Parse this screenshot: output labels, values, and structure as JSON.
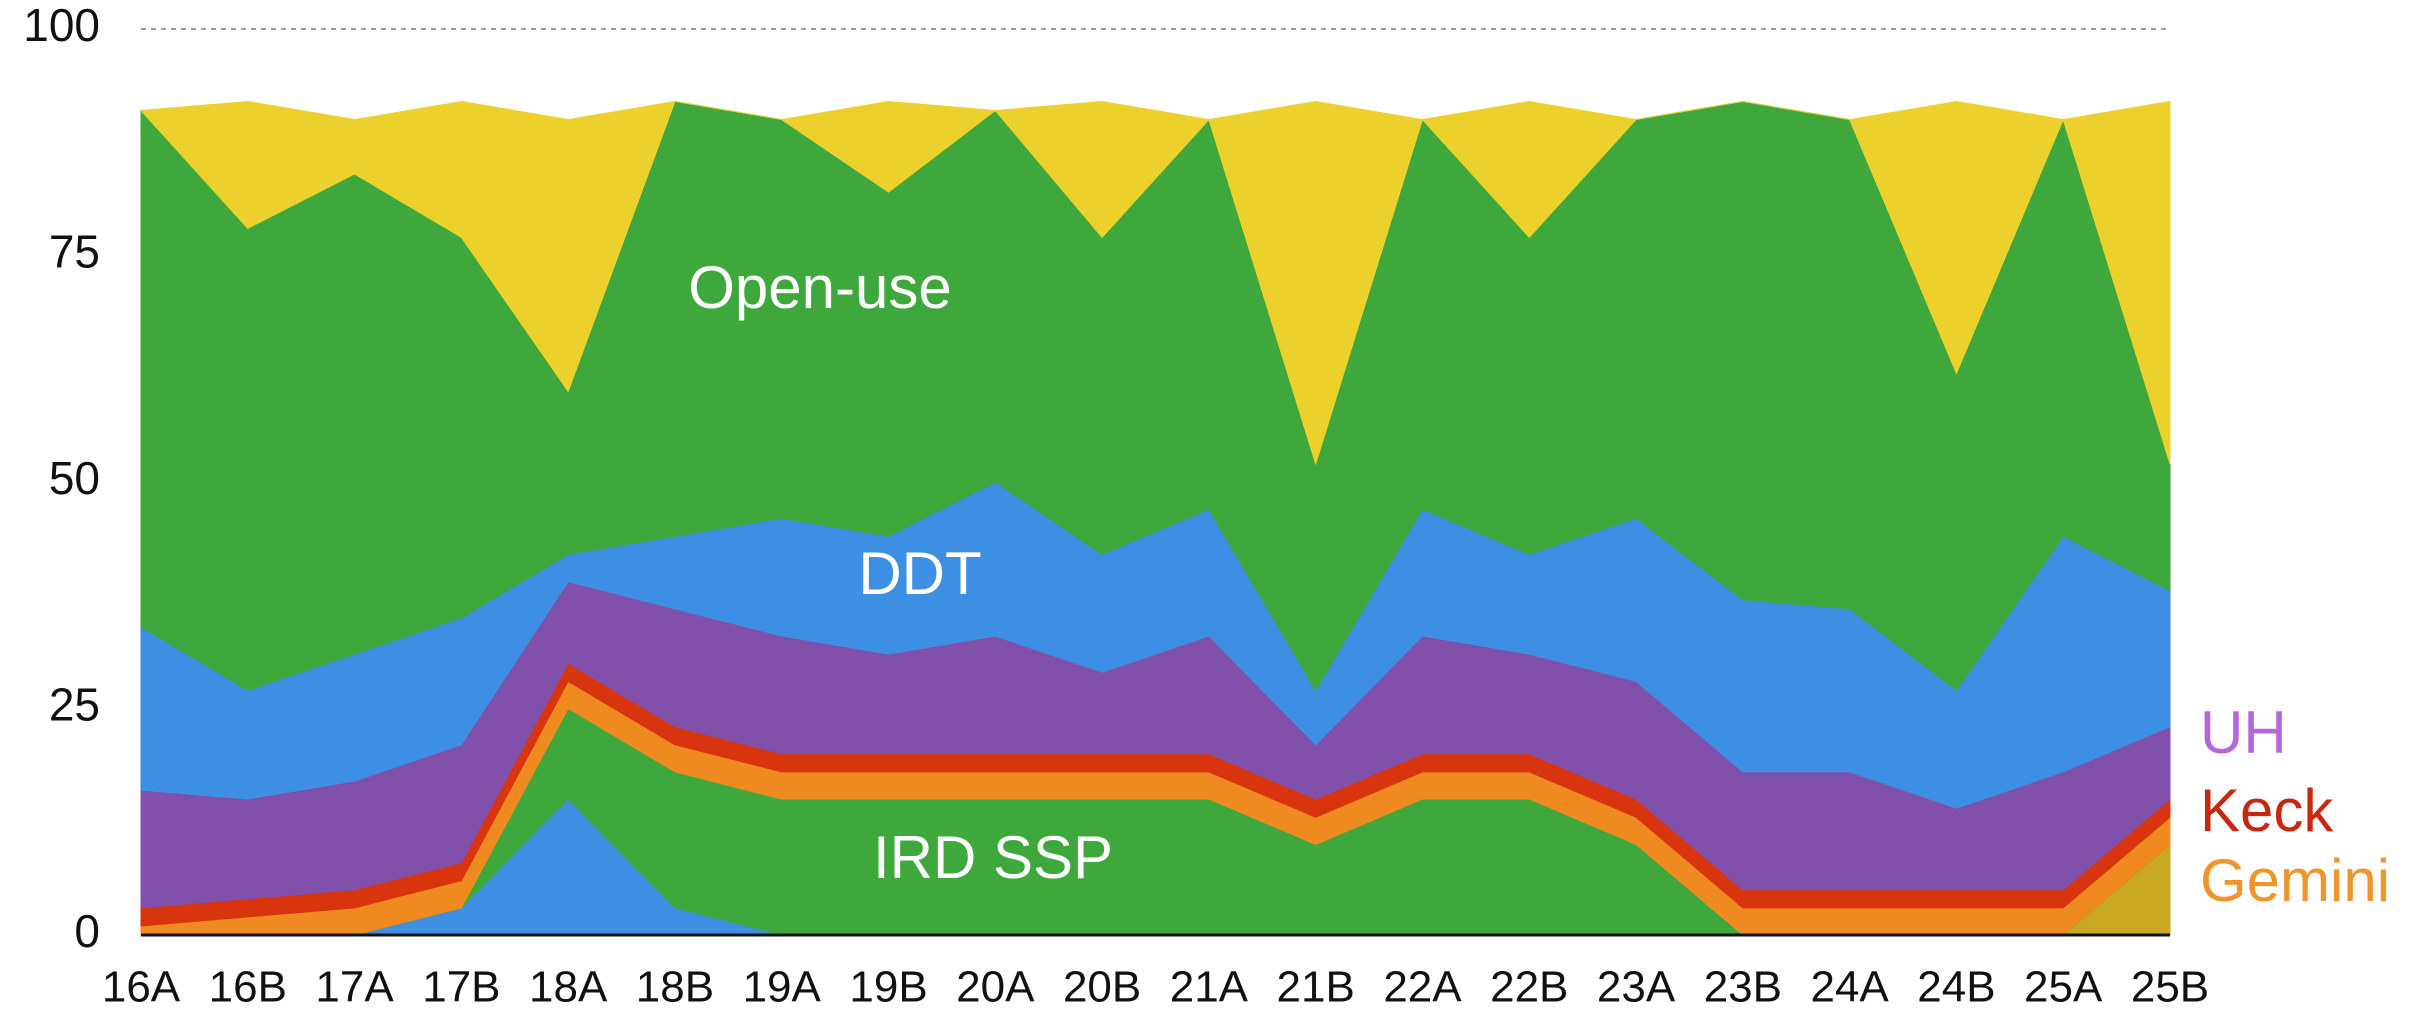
{
  "chart_data": {
    "type": "stacked_area",
    "categories": [
      "16A",
      "16B",
      "17A",
      "17B",
      "18A",
      "18B",
      "19A",
      "19B",
      "20A",
      "20B",
      "21A",
      "21B",
      "22A",
      "22B",
      "23A",
      "23B",
      "24A",
      "24B",
      "25A",
      "25B"
    ],
    "series": [
      {
        "color": "#c9a922",
        "values": [
          0,
          0,
          0,
          0,
          0,
          0,
          0,
          0,
          0,
          0,
          0,
          0,
          0,
          0,
          0,
          0,
          0,
          0,
          0,
          10
        ]
      },
      {
        "color": "#3d8fe4",
        "values": [
          0,
          0,
          0,
          3,
          15,
          3,
          0,
          0,
          0,
          0,
          0,
          0,
          0,
          0,
          0,
          0,
          0,
          0,
          0,
          0
        ]
      },
      {
        "name": "IRD SSP",
        "color": "#3ea83c",
        "values": [
          0,
          0,
          0,
          0,
          10,
          15,
          15,
          15,
          15,
          15,
          15,
          10,
          15,
          15,
          10,
          0,
          0,
          0,
          0,
          0
        ]
      },
      {
        "name": "Gemini",
        "color": "#ee8a1f",
        "values": [
          1,
          2,
          3,
          3,
          3,
          3,
          3,
          3,
          3,
          3,
          3,
          3,
          3,
          3,
          3,
          3,
          3,
          3,
          3,
          3
        ]
      },
      {
        "name": "Keck",
        "color": "#d8350f",
        "values": [
          2,
          2,
          2,
          2,
          2,
          2,
          2,
          2,
          2,
          2,
          2,
          2,
          2,
          2,
          2,
          2,
          2,
          2,
          2,
          2
        ]
      },
      {
        "name": "UH",
        "color": "#8150aa",
        "values": [
          13,
          11,
          12,
          13,
          9,
          13,
          13,
          11,
          13,
          9,
          13,
          6,
          13,
          11,
          13,
          13,
          13,
          9,
          13,
          8
        ]
      },
      {
        "name": "DDT",
        "color": "#3d8fe4",
        "values": [
          18,
          12,
          14,
          14,
          3,
          8,
          13,
          13,
          17,
          13,
          14,
          6,
          14,
          11,
          18,
          19,
          18,
          13,
          26,
          15
        ]
      },
      {
        "name": "Open-use",
        "color": "#3ea83c",
        "values": [
          57,
          51,
          53,
          42,
          18,
          48,
          44,
          38,
          41,
          35,
          43,
          25,
          43,
          35,
          44,
          55,
          54,
          35,
          46,
          14
        ]
      },
      {
        "color": "#ecd02c",
        "values": [
          0,
          14,
          6,
          15,
          30,
          0,
          0,
          10,
          0,
          15,
          0,
          40,
          0,
          15,
          0,
          0,
          0,
          30,
          0,
          40
        ]
      }
    ],
    "ylim": [
      0,
      100
    ],
    "yticks": [
      0,
      25,
      50,
      75,
      100
    ],
    "grid": true
  }
}
